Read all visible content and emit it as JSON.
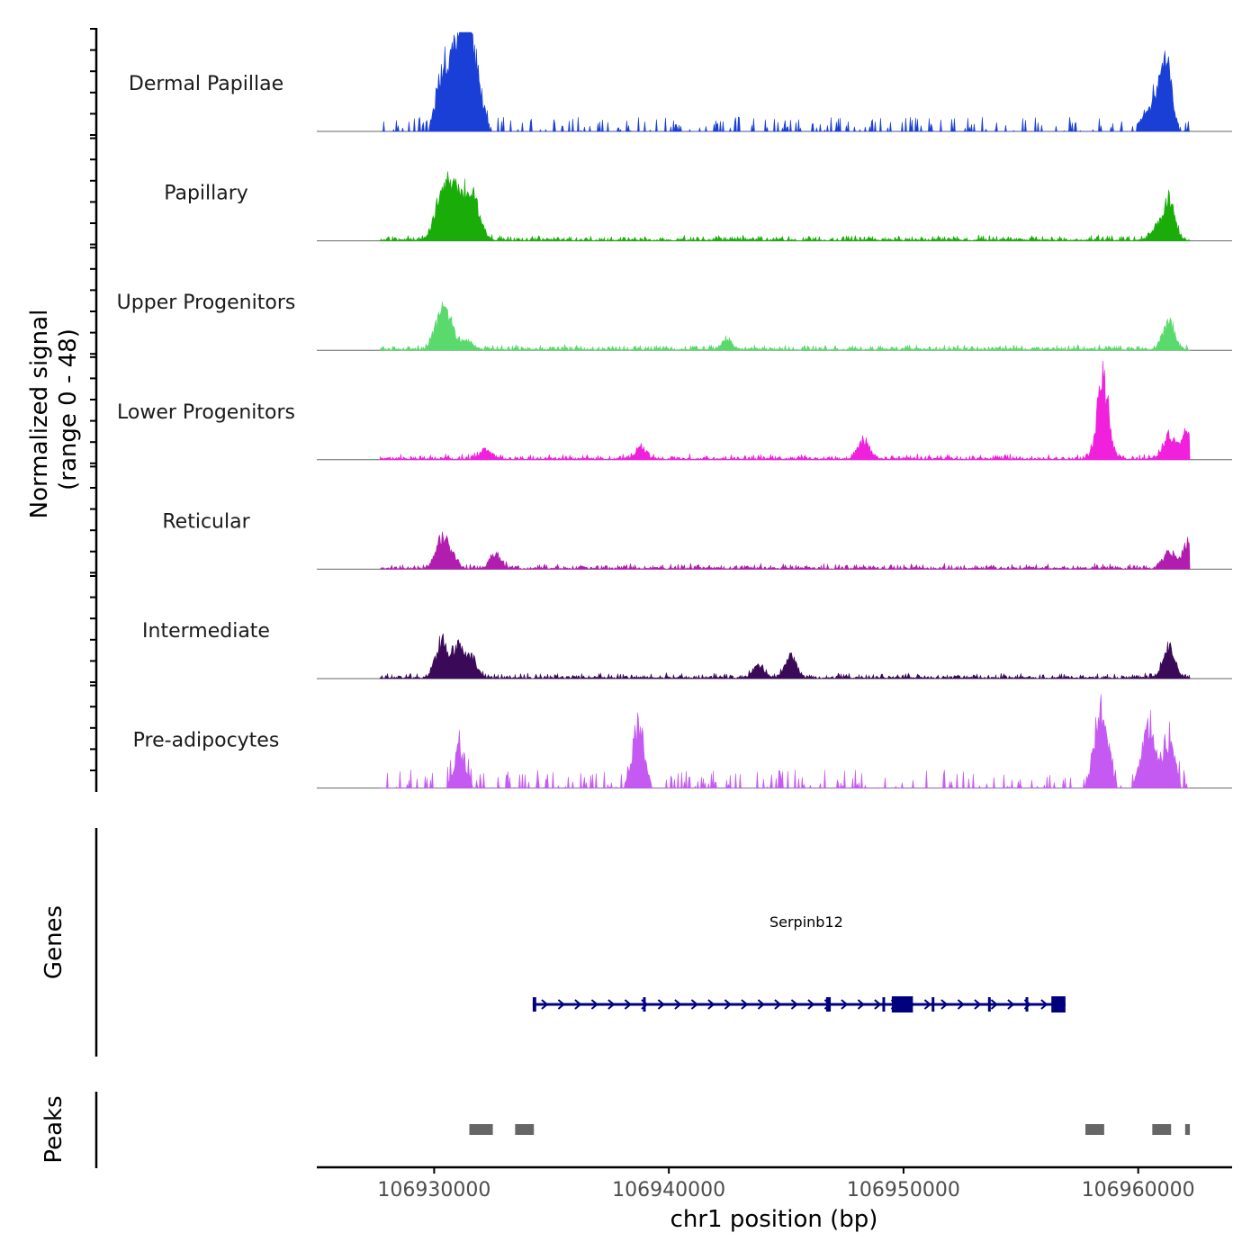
{
  "chart_data": {
    "type": "area",
    "chromosome": "chr1",
    "xlabel": "chr1 position (bp)",
    "ylabel_line1": "Normalized signal",
    "ylabel_line2": "(range 0 - 48)",
    "xlim": [
      106925000,
      106964000
    ],
    "ylim": [
      0,
      48
    ],
    "xticks": [
      106930000,
      106940000,
      106950000,
      106960000
    ],
    "xtick_labels": [
      "106930000",
      "106940000",
      "106950000",
      "106960000"
    ],
    "data_extent": [
      106927700,
      106962200
    ],
    "tracks": [
      {
        "name": "Dermal Papillae",
        "color": "#1a3fd6",
        "peaks": [
          [
            106930300,
            28
          ],
          [
            106930700,
            24
          ],
          [
            106931100,
            35
          ],
          [
            106931300,
            48
          ],
          [
            106931600,
            22
          ],
          [
            106931900,
            20
          ],
          [
            106961200,
            38
          ],
          [
            106960800,
            15
          ],
          [
            106960300,
            10
          ]
        ],
        "noise": 7,
        "sparse": true
      },
      {
        "name": "Papillary",
        "color": "#1aad0a",
        "peaks": [
          [
            106930200,
            20
          ],
          [
            106930600,
            24
          ],
          [
            106931000,
            22
          ],
          [
            106931400,
            20
          ],
          [
            106931800,
            18
          ],
          [
            106961300,
            26
          ],
          [
            106960800,
            6
          ]
        ],
        "noise": 3,
        "sparse": false
      },
      {
        "name": "Upper Progenitors",
        "color": "#5ada6c",
        "peaks": [
          [
            106930200,
            15
          ],
          [
            106930600,
            18
          ],
          [
            106931400,
            5
          ],
          [
            106961300,
            16
          ],
          [
            106942500,
            5
          ]
        ],
        "noise": 3,
        "sparse": false
      },
      {
        "name": "Lower Progenitors",
        "color": "#f020dd",
        "peaks": [
          [
            106958500,
            48
          ],
          [
            106948300,
            12
          ],
          [
            106938800,
            6
          ],
          [
            106932200,
            6
          ],
          [
            106961300,
            14
          ],
          [
            106962100,
            18
          ]
        ],
        "noise": 3,
        "sparse": false
      },
      {
        "name": "Reticular",
        "color": "#b11daf",
        "peaks": [
          [
            106930300,
            15
          ],
          [
            106930700,
            8
          ],
          [
            106932600,
            8
          ],
          [
            106961300,
            9
          ],
          [
            106962100,
            14
          ]
        ],
        "noise": 3,
        "sparse": false
      },
      {
        "name": "Intermediate",
        "color": "#3a0a58",
        "peaks": [
          [
            106930300,
            22
          ],
          [
            106931000,
            18
          ],
          [
            106931600,
            12
          ],
          [
            106945200,
            13
          ],
          [
            106961300,
            17
          ],
          [
            106943800,
            7
          ]
        ],
        "noise": 3,
        "sparse": false
      },
      {
        "name": "Pre-adipocytes",
        "color": "#c45af2",
        "peaks": [
          [
            106938700,
            38
          ],
          [
            106931100,
            22
          ],
          [
            106958300,
            30
          ],
          [
            106958600,
            22
          ],
          [
            106960500,
            30
          ],
          [
            106961300,
            30
          ],
          [
            106960200,
            12
          ]
        ],
        "noise": 9,
        "sparse": true
      }
    ],
    "genes": [
      {
        "name": "Serpinb12",
        "strand": "+",
        "color": "#00007f",
        "start": 106934200,
        "end": 106956900,
        "exons": [
          [
            106934200,
            106934350
          ],
          [
            106938900,
            106939000
          ],
          [
            106946700,
            106946900
          ],
          [
            106949100,
            106949200
          ],
          [
            106949500,
            106950400
          ],
          [
            106951200,
            106951300
          ],
          [
            106953600,
            106953700
          ],
          [
            106955200,
            106955300
          ],
          [
            106956300,
            106956900
          ]
        ]
      }
    ],
    "peaks_track": {
      "color": "#666666",
      "regions": [
        [
          106931500,
          106932500
        ],
        [
          106933450,
          106934250
        ],
        [
          106957750,
          106958550
        ],
        [
          106960600,
          106961400
        ],
        [
          106962000,
          106962200
        ]
      ]
    },
    "panel_labels": {
      "genes": "Genes",
      "peaks": "Peaks"
    }
  }
}
